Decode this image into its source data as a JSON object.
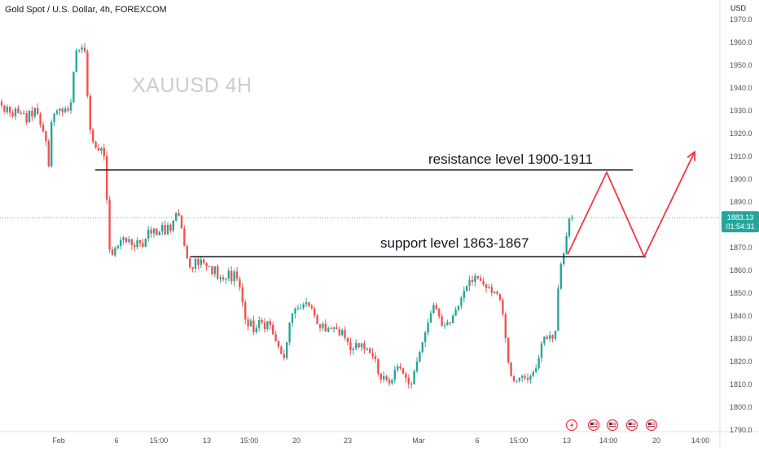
{
  "header": {
    "title": "Gold Spot / U.S. Dollar, 4h, FOREXCOM",
    "currency": "USD"
  },
  "watermark": "XAUUSD  4H",
  "colors": {
    "up": "#26a69a",
    "down": "#ef5350",
    "level_line": "#131722",
    "projection": "#f23645",
    "price_tag": "#26a69a",
    "grid_text": "#4a4f5a"
  },
  "price_tag": {
    "price": "1883.13",
    "countdown": "01:54:31"
  },
  "event_icons": [
    "flag-us-icon",
    "flag-us-icon",
    "flag-us-icon",
    "flag-us-icon",
    "flash-icon"
  ],
  "chart_data": {
    "type": "candlestick",
    "x_axis_labels": [
      "Feb",
      "6",
      "15:00",
      "13",
      "15:00",
      "20",
      "23",
      "Mar",
      "6",
      "15:00",
      "13",
      "14:00",
      "20",
      "14:00"
    ],
    "y_axis_ticks": [
      1790,
      1800,
      1810,
      1820,
      1830,
      1840,
      1850,
      1860,
      1870,
      1880,
      1890,
      1900,
      1910,
      1920,
      1930,
      1940,
      1950,
      1960,
      1970
    ],
    "ylim": [
      1788,
      1974
    ],
    "close_path": [
      [
        0,
        1934
      ],
      [
        6,
        1929
      ],
      [
        10,
        1933
      ],
      [
        14,
        1926
      ],
      [
        20,
        1932
      ],
      [
        24,
        1927
      ],
      [
        28,
        1931
      ],
      [
        32,
        1924
      ],
      [
        36,
        1930
      ],
      [
        40,
        1927
      ],
      [
        44,
        1933
      ],
      [
        48,
        1925
      ],
      [
        52,
        1922
      ],
      [
        56,
        1918
      ],
      [
        60,
        1905
      ],
      [
        64,
        1930
      ],
      [
        68,
        1928
      ],
      [
        72,
        1932
      ],
      [
        76,
        1929
      ],
      [
        80,
        1931
      ],
      [
        84,
        1930
      ],
      [
        88,
        1935
      ],
      [
        92,
        1955
      ],
      [
        96,
        1958
      ],
      [
        99,
        1955
      ],
      [
        102,
        1960
      ],
      [
        106,
        1952
      ],
      [
        108,
        1930
      ],
      [
        112,
        1918
      ],
      [
        116,
        1915
      ],
      [
        120,
        1912
      ],
      [
        124,
        1914
      ],
      [
        128,
        1910
      ],
      [
        130,
        1900
      ],
      [
        132,
        1885
      ],
      [
        134,
        1870
      ],
      [
        137,
        1866
      ],
      [
        140,
        1868
      ],
      [
        143,
        1872
      ],
      [
        146,
        1870
      ],
      [
        150,
        1876
      ],
      [
        154,
        1872
      ],
      [
        158,
        1874
      ],
      [
        162,
        1871
      ],
      [
        166,
        1870
      ],
      [
        170,
        1875
      ],
      [
        174,
        1869
      ],
      [
        178,
        1873
      ],
      [
        182,
        1878
      ],
      [
        186,
        1876
      ],
      [
        190,
        1879
      ],
      [
        194,
        1873
      ],
      [
        198,
        1882
      ],
      [
        202,
        1875
      ],
      [
        206,
        1880
      ],
      [
        210,
        1877
      ],
      [
        214,
        1884
      ],
      [
        218,
        1886
      ],
      [
        222,
        1881
      ],
      [
        225,
        1873
      ],
      [
        228,
        1868
      ],
      [
        232,
        1862
      ],
      [
        236,
        1860
      ],
      [
        240,
        1865
      ],
      [
        244,
        1862
      ],
      [
        248,
        1866
      ],
      [
        252,
        1861
      ],
      [
        256,
        1863
      ],
      [
        260,
        1858
      ],
      [
        264,
        1862
      ],
      [
        268,
        1855
      ],
      [
        272,
        1858
      ],
      [
        276,
        1854
      ],
      [
        280,
        1861
      ],
      [
        284,
        1855
      ],
      [
        288,
        1860
      ],
      [
        292,
        1855
      ],
      [
        296,
        1851
      ],
      [
        300,
        1840
      ],
      [
        304,
        1835
      ],
      [
        308,
        1838
      ],
      [
        312,
        1832
      ],
      [
        316,
        1836
      ],
      [
        320,
        1840
      ],
      [
        324,
        1833
      ],
      [
        328,
        1838
      ],
      [
        332,
        1836
      ],
      [
        336,
        1831
      ],
      [
        340,
        1828
      ],
      [
        344,
        1825
      ],
      [
        348,
        1820
      ],
      [
        352,
        1828
      ],
      [
        356,
        1838
      ],
      [
        360,
        1842
      ],
      [
        364,
        1844
      ],
      [
        368,
        1843
      ],
      [
        372,
        1845
      ],
      [
        376,
        1846
      ],
      [
        380,
        1844
      ],
      [
        384,
        1843
      ],
      [
        388,
        1838
      ],
      [
        392,
        1834
      ],
      [
        396,
        1837
      ],
      [
        400,
        1833
      ],
      [
        404,
        1835
      ],
      [
        408,
        1834
      ],
      [
        412,
        1836
      ],
      [
        416,
        1831
      ],
      [
        420,
        1834
      ],
      [
        424,
        1830
      ],
      [
        428,
        1828
      ],
      [
        432,
        1823
      ],
      [
        436,
        1829
      ],
      [
        440,
        1826
      ],
      [
        444,
        1828
      ],
      [
        448,
        1825
      ],
      [
        452,
        1826
      ],
      [
        456,
        1822
      ],
      [
        460,
        1823
      ],
      [
        464,
        1815
      ],
      [
        468,
        1812
      ],
      [
        472,
        1814
      ],
      [
        476,
        1811
      ],
      [
        480,
        1810
      ],
      [
        484,
        1816
      ],
      [
        488,
        1818
      ],
      [
        492,
        1817
      ],
      [
        496,
        1814
      ],
      [
        500,
        1812
      ],
      [
        504,
        1808
      ],
      [
        508,
        1815
      ],
      [
        512,
        1820
      ],
      [
        516,
        1825
      ],
      [
        520,
        1830
      ],
      [
        524,
        1835
      ],
      [
        528,
        1840
      ],
      [
        532,
        1845
      ],
      [
        536,
        1843
      ],
      [
        540,
        1839
      ],
      [
        544,
        1834
      ],
      [
        548,
        1838
      ],
      [
        552,
        1836
      ],
      [
        556,
        1840
      ],
      [
        560,
        1843
      ],
      [
        564,
        1845
      ],
      [
        568,
        1850
      ],
      [
        572,
        1852
      ],
      [
        576,
        1856
      ],
      [
        580,
        1855
      ],
      [
        584,
        1858
      ],
      [
        588,
        1856
      ],
      [
        592,
        1855
      ],
      [
        596,
        1852
      ],
      [
        600,
        1853
      ],
      [
        604,
        1850
      ],
      [
        608,
        1851
      ],
      [
        612,
        1849
      ],
      [
        616,
        1845
      ],
      [
        620,
        1833
      ],
      [
        624,
        1820
      ],
      [
        628,
        1813
      ],
      [
        632,
        1811
      ],
      [
        636,
        1812
      ],
      [
        640,
        1814
      ],
      [
        644,
        1813
      ],
      [
        648,
        1812
      ],
      [
        652,
        1814
      ],
      [
        656,
        1816
      ],
      [
        660,
        1818
      ],
      [
        664,
        1827
      ],
      [
        668,
        1831
      ],
      [
        672,
        1830
      ],
      [
        676,
        1832
      ],
      [
        680,
        1829
      ],
      [
        684,
        1838
      ],
      [
        686,
        1858
      ],
      [
        688,
        1862
      ],
      [
        690,
        1864
      ],
      [
        693,
        1869
      ],
      [
        696,
        1876
      ],
      [
        700,
        1885
      ],
      [
        703,
        1883
      ]
    ],
    "levels": [
      {
        "label": "resistance level  1900-1911",
        "price": 1904
      },
      {
        "label": "support level   1863-1867",
        "price": 1866
      }
    ],
    "projection": [
      [
        697,
        1867
      ],
      [
        745,
        1903
      ],
      [
        791,
        1866
      ],
      [
        853,
        1912
      ]
    ]
  }
}
